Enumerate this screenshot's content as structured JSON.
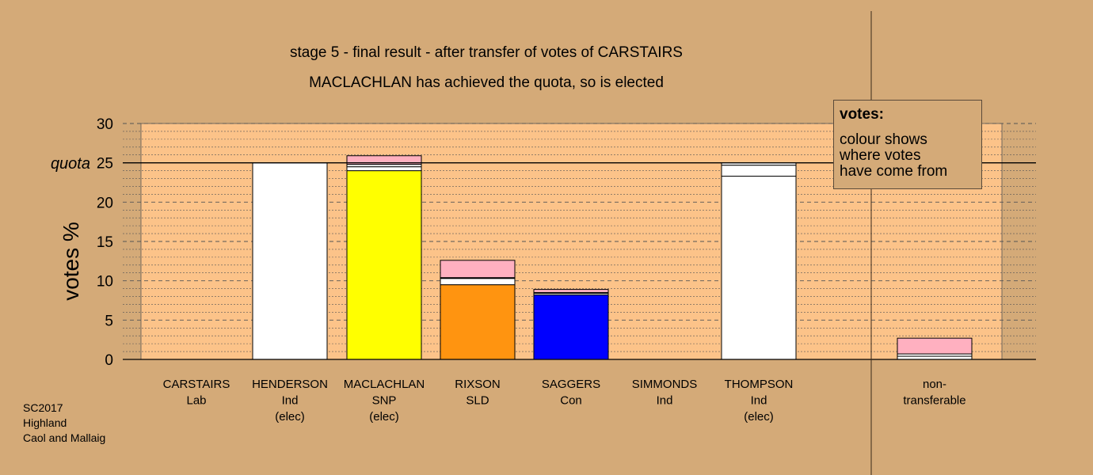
{
  "titles": {
    "line1": "stage 5 - final result - after transfer of votes of CARSTAIRS",
    "line2": "MACLACHLAN has achieved the quota, so is elected"
  },
  "legend": {
    "title": "votes:",
    "text": [
      "colour shows",
      "where votes",
      "have come from"
    ]
  },
  "footer": [
    "SC2017",
    "Highland",
    "Caol and Mallaig"
  ],
  "colors": {
    "background": "#D4AA78",
    "plot_area": "#FCC389",
    "Ind": "#FFFFFF",
    "SNP": "#FFFF00",
    "SLD": "#FF9410",
    "Con": "#0000FF",
    "Lab": "#FFB0C0"
  },
  "chart_data": {
    "type": "bar",
    "stacked": true,
    "ylabel": "votes %",
    "ylim": [
      0,
      30
    ],
    "yticks": [
      0,
      5,
      10,
      15,
      20,
      25,
      30
    ],
    "quota": 25,
    "quota_label": "quota",
    "grid": true,
    "categories": [
      {
        "name": "CARSTAIRS",
        "party": "Lab",
        "status": ""
      },
      {
        "name": "HENDERSON",
        "party": "Ind",
        "status": "(elec)"
      },
      {
        "name": "MACLACHLAN",
        "party": "SNP",
        "status": "(elec)"
      },
      {
        "name": "RIXSON",
        "party": "SLD",
        "status": ""
      },
      {
        "name": "SAGGERS",
        "party": "Con",
        "status": ""
      },
      {
        "name": "SIMMONDS",
        "party": "Ind",
        "status": ""
      },
      {
        "name": "THOMPSON",
        "party": "Ind",
        "status": "(elec)"
      },
      {
        "name": "non-",
        "party": "transferable",
        "status": ""
      }
    ],
    "stacks": [
      [],
      [
        {
          "from": "Ind",
          "value": 25.0
        }
      ],
      [
        {
          "from": "SNP",
          "value": 24.0
        },
        {
          "from": "Ind",
          "value": 0.5
        },
        {
          "from": "Ind",
          "value": 0.3
        },
        {
          "from": "Lab",
          "value": 1.1
        }
      ],
      [
        {
          "from": "SLD",
          "value": 9.5
        },
        {
          "from": "Ind",
          "value": 0.8
        },
        {
          "from": "Ind",
          "value": 0.1
        },
        {
          "from": "Lab",
          "value": 2.2
        }
      ],
      [
        {
          "from": "Con",
          "value": 8.2
        },
        {
          "from": "Ind",
          "value": 0.2
        },
        {
          "from": "Ind",
          "value": 0.1
        },
        {
          "from": "Lab",
          "value": 0.4
        }
      ],
      [],
      [
        {
          "from": "Ind",
          "value": 23.3
        },
        {
          "from": "Ind",
          "value": 1.4
        },
        {
          "from": "Ind",
          "value": 0.3
        }
      ],
      [
        {
          "from": "Ind",
          "value": 0.4
        },
        {
          "from": "Ind",
          "value": 0.3
        },
        {
          "from": "Lab",
          "value": 2.0
        }
      ]
    ]
  }
}
